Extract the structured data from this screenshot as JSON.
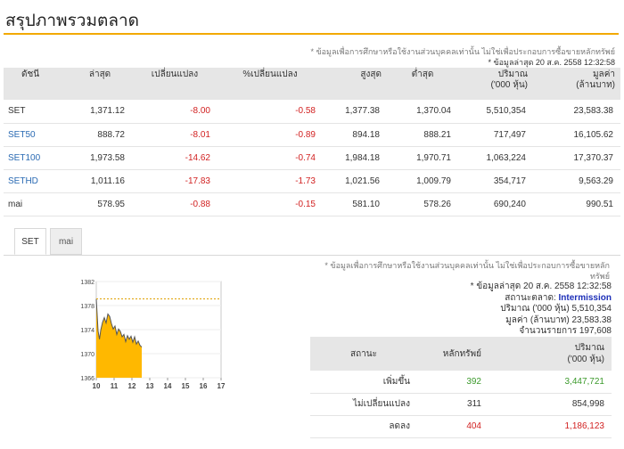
{
  "page": {
    "title": "สรุปภาพรวมตลาด",
    "disclaimer": "* ข้อมูลเพื่อการศึกษาหรือใช้งานส่วนบุคคลเท่านั้น ไม่ใช่เพื่อประกอบการซื้อขายหลักทรัพย์",
    "updated": "* ข้อมูลล่าสุด 20 ส.ค. 2558 12:32:58"
  },
  "index_table": {
    "headers": {
      "index": "ดัชนี",
      "last": "ล่าสุด",
      "change": "เปลี่ยนแปลง",
      "pct_change": "%เปลี่ยนแปลง",
      "high": "สูงสุด",
      "low": "ต่ำสุด",
      "volume_l1": "ปริมาณ",
      "volume_l2": "('000 หุ้น)",
      "value_l1": "มูลค่า",
      "value_l2": "(ล้านบาท)"
    },
    "rows": [
      {
        "name": "SET",
        "last": "1,371.12",
        "change": "-8.00",
        "pct": "-0.58",
        "high": "1,377.38",
        "low": "1,370.04",
        "volume": "5,510,354",
        "value": "23,583.38"
      },
      {
        "name": "SET50",
        "last": "888.72",
        "change": "-8.01",
        "pct": "-0.89",
        "high": "894.18",
        "low": "888.21",
        "volume": "717,497",
        "value": "16,105.62"
      },
      {
        "name": "SET100",
        "last": "1,973.58",
        "change": "-14.62",
        "pct": "-0.74",
        "high": "1,984.18",
        "low": "1,970.71",
        "volume": "1,063,224",
        "value": "17,370.37"
      },
      {
        "name": "SETHD",
        "last": "1,011.16",
        "change": "-17.83",
        "pct": "-1.73",
        "high": "1,021.56",
        "low": "1,009.79",
        "volume": "354,717",
        "value": "9,563.29"
      },
      {
        "name": "mai",
        "last": "578.95",
        "change": "-0.88",
        "pct": "-0.15",
        "high": "581.10",
        "low": "578.26",
        "volume": "690,240",
        "value": "990.51"
      }
    ]
  },
  "tabs": [
    "SET",
    "mai"
  ],
  "chart_data": {
    "type": "area",
    "x_ticks": [
      "10",
      "11",
      "12",
      "13",
      "14",
      "15",
      "16",
      "17"
    ],
    "y_ticks": [
      "1382",
      "1378",
      "1374",
      "1370",
      "1366"
    ],
    "xlim": [
      10,
      17
    ],
    "ylim": [
      1366,
      1382
    ],
    "prev_close": 1379.12,
    "x": [
      10.0,
      10.05,
      10.1,
      10.18,
      10.25,
      10.35,
      10.45,
      10.55,
      10.65,
      10.75,
      10.85,
      10.95,
      11.05,
      11.15,
      11.25,
      11.35,
      11.45,
      11.55,
      11.65,
      11.75,
      11.85,
      11.95,
      12.05,
      12.15,
      12.25,
      12.35,
      12.45,
      12.55
    ],
    "y": [
      1379.1,
      1376.5,
      1373.8,
      1372.4,
      1373.9,
      1375.2,
      1376.0,
      1375.1,
      1376.6,
      1376.2,
      1375.0,
      1374.1,
      1374.6,
      1373.2,
      1374.1,
      1373.7,
      1372.8,
      1373.2,
      1372.0,
      1373.0,
      1372.4,
      1372.9,
      1371.9,
      1372.8,
      1371.6,
      1372.1,
      1371.4,
      1371.1
    ]
  },
  "side_disclaimer": "* ข้อมูลเพื่อการศึกษาหรือใช้งานส่วนบุคคลเท่านั้น ไม่ใช่เพื่อประกอบการซื้อขายหลักทรัพย์",
  "info": {
    "updated": "* ข้อมูลล่าสุด 20 ส.ค. 2558 12:32:58",
    "status_label": "สถานะตลาด:",
    "status_value": "Intermission",
    "volume": "ปริมาณ ('000 หุ้น)  5,510,354",
    "value": "มูลค่า (ล้านบาท)  23,583.38",
    "trades": "จำนวนรายการ  197,608"
  },
  "breadth": {
    "headers": {
      "status": "สถานะ",
      "securities": "หลักทรัพย์",
      "volume_l1": "ปริมาณ",
      "volume_l2": "('000 หุ้น)"
    },
    "rows": [
      {
        "status": "เพิ่มขึ้น",
        "count": "392",
        "volume": "3,447,721"
      },
      {
        "status": "ไม่เปลี่ยนแปลง",
        "count": "311",
        "volume": "854,998"
      },
      {
        "status": "ลดลง",
        "count": "404",
        "volume": "1,186,123"
      }
    ]
  },
  "colors": {
    "accent": "#f2a900",
    "chart_fill": "#ffb800",
    "negative": "#d22222",
    "positive": "#3c9a2c",
    "link": "#2a6ab3"
  }
}
